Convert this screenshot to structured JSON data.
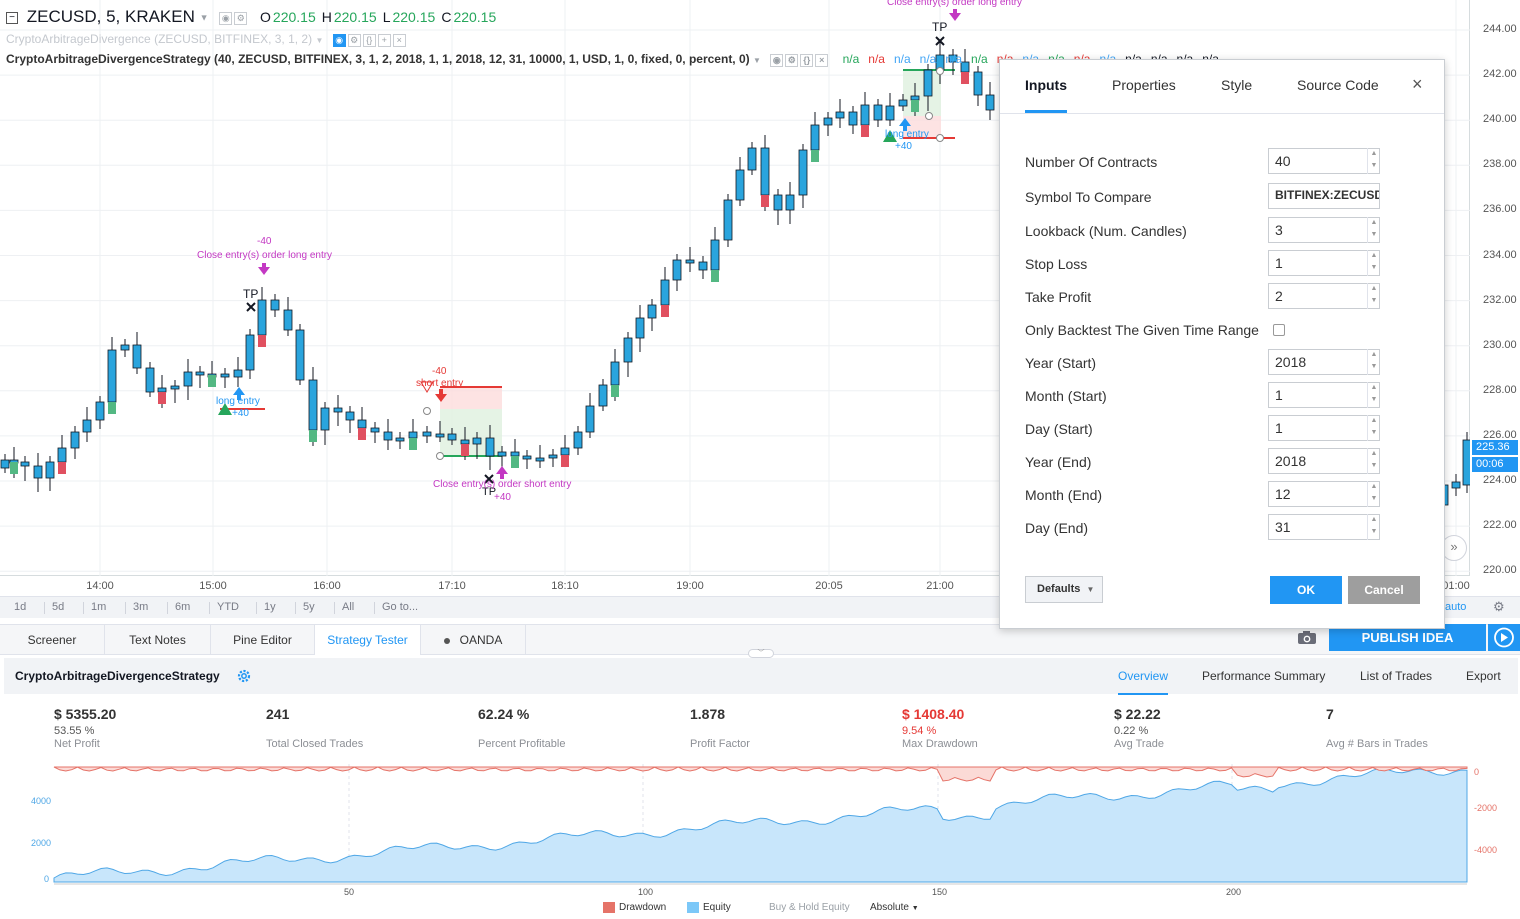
{
  "header": {
    "symbol_title": "ZECUSD, 5, KRAKEN",
    "ohlc": [
      {
        "key": "O",
        "value": "220.15"
      },
      {
        "key": "H",
        "value": "220.15"
      },
      {
        "key": "L",
        "value": "220.15"
      },
      {
        "key": "C",
        "value": "220.15"
      }
    ],
    "indicator_line": "CryptoArbitrageDivergence (ZECUSD, BITFINEX, 3, 1, 2)",
    "strategy_line": "CryptoArbitrageDivergenceStrategy (40, ZECUSD, BITFINEX, 3, 1, 2, 2018, 1, 1, 2018, 12, 31, 10000, 1, USD, 1, 0, fixed, 0, percent, 0)",
    "na_values": [
      "n/a",
      "n/a",
      "n/a",
      "n/a",
      "n/a",
      "n/a",
      "n/a",
      "n/a",
      "n/a",
      "n/a",
      "n/a",
      "n/a",
      "n/a",
      "n/a",
      "n/a"
    ],
    "na_colors": [
      "#26a65b",
      "#e53935",
      "#42a5f5",
      "#42a5f5",
      "#42a5f5",
      "#26a65b",
      "#e53935",
      "#42a5f5",
      "#26a65b",
      "#e53935",
      "#42a5f5",
      "#131722",
      "#131722",
      "#131722",
      "#131722"
    ]
  },
  "price_axis": {
    "labels": [
      "244.00",
      "242.00",
      "240.00",
      "238.00",
      "236.00",
      "234.00",
      "232.00",
      "230.00",
      "228.00",
      "226.00",
      "224.00",
      "222.00",
      "220.00"
    ],
    "last_price_tag": "225.36",
    "countdown_tag": "00:06"
  },
  "time_axis": {
    "labels": [
      "14:00",
      "15:00",
      "16:00",
      "17:10",
      "18:10",
      "19:00",
      "20:05",
      "21:00",
      "01:00"
    ]
  },
  "chart_annotations": {
    "close_long_top": "Close entry(s) order long entry",
    "close_long_mid": "Close entry(s) order long entry",
    "minus40_a": "-40",
    "minus40_b": "-40",
    "tp_a": "TP",
    "tp_b": "TP",
    "tp_c": "TP",
    "long_entry_a": "long entry",
    "long_entry_b": "long entry",
    "plus40_a": "+40",
    "plus40_b": "+40",
    "plus40_c": "+40",
    "short_entry": "short entry",
    "close_short": "Close entry(s) order short entry"
  },
  "range_bar": {
    "buttons": [
      "1d",
      "5d",
      "1m",
      "3m",
      "6m",
      "YTD",
      "1y",
      "5y",
      "All",
      "Go to..."
    ],
    "auto": "auto"
  },
  "bottom_tabs": {
    "tabs": [
      "Screener",
      "Text Notes",
      "Pine Editor",
      "Strategy Tester",
      "OANDA"
    ],
    "publish": "PUBLISH IDEA"
  },
  "strategy": {
    "name": "CryptoArbitrageDivergenceStrategy",
    "tabs": [
      "Overview",
      "Performance Summary",
      "List of Trades",
      "Export"
    ],
    "metrics": [
      {
        "value": "$ 5355.20",
        "sub": "53.55 %",
        "label": "Net Profit",
        "red": false
      },
      {
        "value": "241",
        "sub": "",
        "label": "Total Closed Trades",
        "red": false
      },
      {
        "value": "62.24 %",
        "sub": "",
        "label": "Percent Profitable",
        "red": false
      },
      {
        "value": "1.878",
        "sub": "",
        "label": "Profit Factor",
        "red": false
      },
      {
        "value": "$ 1408.40",
        "sub": "9.54 %",
        "label": "Max Drawdown",
        "red": true
      },
      {
        "value": "$ 22.22",
        "sub": "0.22 %",
        "label": "Avg Trade",
        "red": false
      },
      {
        "value": "7",
        "sub": "",
        "label": "Avg # Bars in Trades",
        "red": false
      }
    ],
    "equity_axis_left": [
      "4000",
      "2000",
      "0"
    ],
    "equity_axis_right": [
      "0",
      "-2000",
      "-4000"
    ],
    "equity_axis_bottom": [
      "50",
      "100",
      "150",
      "200"
    ],
    "legend": {
      "drawdown": "Drawdown",
      "equity": "Equity",
      "buy_hold": "Buy & Hold Equity",
      "mode": "Absolute"
    }
  },
  "dialog": {
    "tabs": [
      "Inputs",
      "Properties",
      "Style",
      "Source Code"
    ],
    "close": "×",
    "fields": [
      {
        "label": "Number Of Contracts",
        "value": "40",
        "type": "number"
      },
      {
        "label": "Symbol To Compare",
        "value": "BITFINEX:ZECUSD",
        "type": "symbol"
      },
      {
        "label": "Lookback (Num. Candles)",
        "value": "3",
        "type": "number"
      },
      {
        "label": "Stop Loss",
        "value": "1",
        "type": "number"
      },
      {
        "label": "Take Profit",
        "value": "2",
        "type": "number"
      },
      {
        "label": "Only Backtest The Given Time Range",
        "value": "",
        "type": "checkbox"
      },
      {
        "label": "Year (Start)",
        "value": "2018",
        "type": "number"
      },
      {
        "label": "Month (Start)",
        "value": "1",
        "type": "number"
      },
      {
        "label": "Day (Start)",
        "value": "1",
        "type": "number"
      },
      {
        "label": "Year (End)",
        "value": "2018",
        "type": "number"
      },
      {
        "label": "Month (End)",
        "value": "12",
        "type": "number"
      },
      {
        "label": "Day (End)",
        "value": "31",
        "type": "number"
      }
    ],
    "defaults": "Defaults",
    "ok": "OK",
    "cancel": "Cancel"
  },
  "colors": {
    "accent": "#2196f3",
    "up": "#26a65b",
    "down": "#e53935",
    "candle_body": "#2aa4dd",
    "magenta": "#c338c3"
  }
}
